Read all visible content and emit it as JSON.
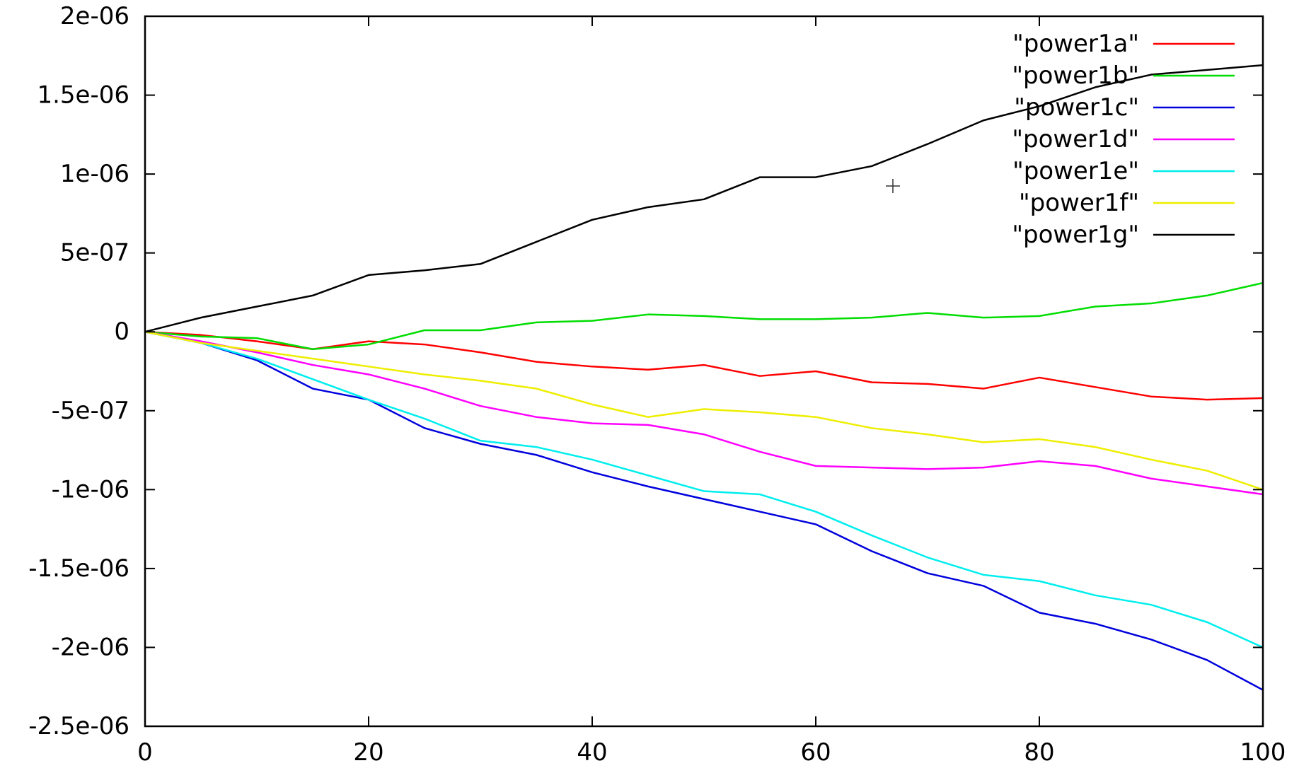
{
  "chart_data": {
    "type": "line",
    "title": "",
    "xlabel": "",
    "ylabel": "",
    "xlim": [
      0,
      100
    ],
    "ylim": [
      -2.5e-06,
      2e-06
    ],
    "grid": false,
    "legend_position": "top-right",
    "x_ticks": [
      0,
      20,
      40,
      60,
      80,
      100
    ],
    "x_tick_labels": [
      "0",
      "20",
      "40",
      "60",
      "80",
      "100"
    ],
    "y_ticks": [
      2e-06,
      1.5e-06,
      1e-06,
      5e-07,
      0,
      -5e-07,
      -1e-06,
      -1.5e-06,
      -2e-06,
      -2.5e-06
    ],
    "y_tick_labels": [
      "2e-06",
      "1.5e-06",
      "1e-06",
      "5e-07",
      "0",
      "-5e-07",
      "-1e-06",
      "-1.5e-06",
      "-2e-06",
      "-2.5e-06"
    ],
    "x": [
      0,
      5,
      10,
      15,
      20,
      25,
      30,
      35,
      40,
      45,
      50,
      55,
      60,
      65,
      70,
      75,
      80,
      85,
      90,
      95,
      100
    ],
    "series": [
      {
        "name": "\"power1a\"",
        "color": "#ff0000",
        "values": [
          0,
          -2e-08,
          -6e-08,
          -1.1e-07,
          -6e-08,
          -8e-08,
          -1.3e-07,
          -1.9e-07,
          -2.2e-07,
          -2.4e-07,
          -2.1e-07,
          -2.8e-07,
          -2.5e-07,
          -3.2e-07,
          -3.3e-07,
          -3.6e-07,
          -2.9e-07,
          -3.5e-07,
          -4.1e-07,
          -4.3e-07,
          -4.2e-07
        ]
      },
      {
        "name": "\"power1b\"",
        "color": "#00dd00",
        "values": [
          0,
          -3e-08,
          -4e-08,
          -1.1e-07,
          -8e-08,
          1e-08,
          1e-08,
          6e-08,
          7e-08,
          1.1e-07,
          1e-07,
          8e-08,
          8e-08,
          9e-08,
          1.2e-07,
          9e-08,
          1e-07,
          1.6e-07,
          1.8e-07,
          2.3e-07,
          3.1e-07
        ]
      },
      {
        "name": "\"power1c\"",
        "color": "#0000dd",
        "values": [
          0,
          -7e-08,
          -1.8e-07,
          -3.6e-07,
          -4.3e-07,
          -6.1e-07,
          -7.1e-07,
          -7.8e-07,
          -8.9e-07,
          -9.8e-07,
          -1.06e-06,
          -1.14e-06,
          -1.22e-06,
          -1.39e-06,
          -1.53e-06,
          -1.61e-06,
          -1.78e-06,
          -1.85e-06,
          -1.95e-06,
          -2.08e-06,
          -2.27e-06
        ]
      },
      {
        "name": "\"power1d\"",
        "color": "#ff00ff",
        "values": [
          0,
          -6e-08,
          -1.3e-07,
          -2.1e-07,
          -2.7e-07,
          -3.6e-07,
          -4.7e-07,
          -5.4e-07,
          -5.8e-07,
          -5.9e-07,
          -6.5e-07,
          -7.6e-07,
          -8.5e-07,
          -8.6e-07,
          -8.7e-07,
          -8.6e-07,
          -8.2e-07,
          -8.5e-07,
          -9.3e-07,
          -9.8e-07,
          -1.03e-06
        ]
      },
      {
        "name": "\"power1e\"",
        "color": "#00eeee",
        "values": [
          0,
          -7e-08,
          -1.7e-07,
          -3e-07,
          -4.3e-07,
          -5.5e-07,
          -6.9e-07,
          -7.3e-07,
          -8.1e-07,
          -9.1e-07,
          -1.01e-06,
          -1.03e-06,
          -1.14e-06,
          -1.29e-06,
          -1.43e-06,
          -1.54e-06,
          -1.58e-06,
          -1.67e-06,
          -1.73e-06,
          -1.84e-06,
          -2e-06
        ]
      },
      {
        "name": "\"power1f\"",
        "color": "#eeee00",
        "values": [
          0,
          -7e-08,
          -1.2e-07,
          -1.7e-07,
          -2.2e-07,
          -2.7e-07,
          -3.1e-07,
          -3.6e-07,
          -4.6e-07,
          -5.4e-07,
          -4.9e-07,
          -5.1e-07,
          -5.4e-07,
          -6.1e-07,
          -6.5e-07,
          -7e-07,
          -6.8e-07,
          -7.3e-07,
          -8.1e-07,
          -8.8e-07,
          -1e-06
        ]
      },
      {
        "name": "\"power1g\"",
        "color": "#000000",
        "values": [
          0,
          9e-08,
          1.6e-07,
          2.3e-07,
          3.6e-07,
          3.9e-07,
          4.3e-07,
          5.7e-07,
          7.1e-07,
          7.9e-07,
          8.4e-07,
          9.8e-07,
          9.8e-07,
          1.05e-06,
          1.19e-06,
          1.34e-06,
          1.43e-06,
          1.55e-06,
          1.63e-06,
          1.66e-06,
          1.69e-06
        ]
      }
    ]
  }
}
